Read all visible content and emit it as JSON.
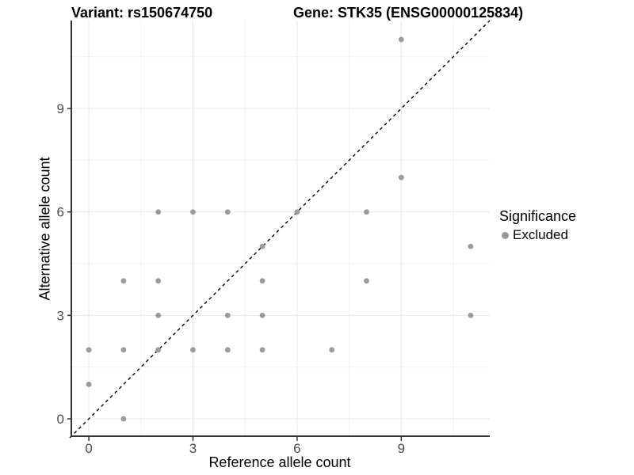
{
  "chart_data": {
    "type": "scatter",
    "titles": {
      "left": "Variant: rs150674750",
      "right": "Gene: STK35 (ENSG00000125834)"
    },
    "xlabel": "Reference allele count",
    "ylabel": "Alternative allele count",
    "xlim": [
      -0.55,
      11.55
    ],
    "ylim": [
      -0.55,
      11.55
    ],
    "x_ticks": [
      0,
      3,
      6,
      9
    ],
    "y_ticks": [
      0,
      3,
      6,
      9
    ],
    "x_minor": [
      1.5,
      4.5,
      7.5,
      10.5
    ],
    "y_minor": [
      1.5,
      4.5,
      7.5,
      10.5
    ],
    "grid": true,
    "identity_line": {
      "style": "dashed",
      "from": -0.55,
      "to": 11.55
    },
    "series": [
      {
        "name": "Excluded",
        "color": "#9a9a9a",
        "points": [
          [
            0,
            1
          ],
          [
            0,
            2
          ],
          [
            1,
            0
          ],
          [
            1,
            2
          ],
          [
            1,
            4
          ],
          [
            2,
            2
          ],
          [
            2,
            3
          ],
          [
            2,
            4
          ],
          [
            2,
            6
          ],
          [
            3,
            2
          ],
          [
            3,
            6
          ],
          [
            4,
            2
          ],
          [
            4,
            3
          ],
          [
            4,
            6
          ],
          [
            5,
            2
          ],
          [
            5,
            3
          ],
          [
            5,
            4
          ],
          [
            5,
            5
          ],
          [
            6,
            6
          ],
          [
            7,
            2
          ],
          [
            8,
            4
          ],
          [
            8,
            6
          ],
          [
            9,
            7
          ],
          [
            9,
            11
          ],
          [
            11,
            3
          ],
          [
            11,
            5
          ]
        ]
      }
    ],
    "legend": {
      "title": "Significance",
      "position": "right"
    },
    "colors": {
      "background": "#ffffff",
      "grid_major": "#e8e8e8",
      "grid_minor": "#f3f3f3",
      "axis": "#333333",
      "tick_label": "#4d4d4d",
      "identity": "#000000",
      "point": "#9a9a9a"
    }
  }
}
